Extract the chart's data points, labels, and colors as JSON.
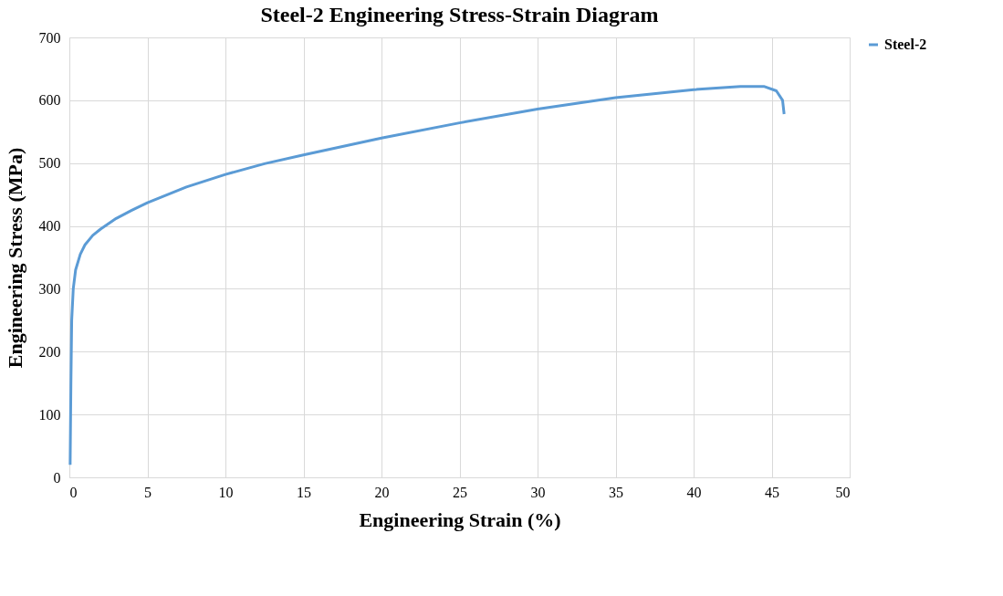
{
  "chart_data": {
    "type": "line",
    "title": "Steel-2 Engineering Stress-Strain Diagram",
    "xlabel": "Engineering Strain (%)",
    "ylabel": "Engineering Stress (MPa)",
    "x": [
      0.05,
      0.08,
      0.1,
      0.15,
      0.25,
      0.4,
      0.7,
      1,
      1.5,
      2,
      3,
      4,
      5,
      7.5,
      10,
      12.5,
      15,
      20,
      25,
      30,
      35,
      40,
      43,
      44.5,
      45.3,
      45.7,
      45.8
    ],
    "series": [
      {
        "name": "Steel-2",
        "color": "#5b9bd5",
        "values": [
          20,
          100,
          150,
          250,
          300,
          330,
          355,
          370,
          385,
          395,
          412,
          425,
          437,
          462,
          482,
          499,
          513,
          540,
          564,
          586,
          604,
          617,
          622,
          622,
          615,
          600,
          578
        ]
      }
    ],
    "xlim": [
      0,
      50
    ],
    "xticks": [
      0,
      5,
      10,
      15,
      20,
      25,
      30,
      35,
      40,
      45,
      50
    ],
    "ylim": [
      0,
      700
    ],
    "yticks": [
      0,
      100,
      200,
      300,
      400,
      500,
      600,
      700
    ],
    "grid": true,
    "legend": "right",
    "marker": "none",
    "line_style": "solid"
  }
}
